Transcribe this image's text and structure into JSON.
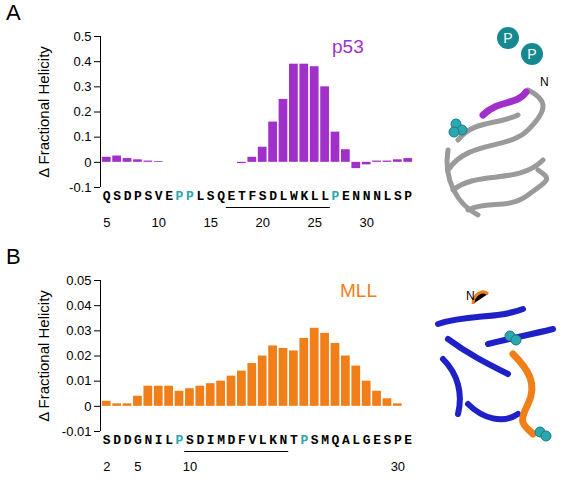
{
  "chart_data": [
    {
      "type": "bar",
      "panel": "A",
      "title": "p53",
      "color": "#a12fc9",
      "ylabel": "Δ Fractional Helicity",
      "x": [
        5,
        6,
        7,
        8,
        9,
        10,
        11,
        12,
        13,
        14,
        15,
        16,
        17,
        18,
        19,
        20,
        21,
        22,
        23,
        24,
        25,
        26,
        27,
        28,
        29,
        30,
        31,
        32,
        33,
        34
      ],
      "categories": [
        "Q",
        "S",
        "D",
        "P",
        "S",
        "V",
        "E",
        "P",
        "P",
        "L",
        "S",
        "Q",
        "E",
        "T",
        "F",
        "S",
        "D",
        "L",
        "W",
        "K",
        "L",
        "L",
        "P",
        "E",
        "N",
        "N",
        "N",
        "L",
        "S",
        "P"
      ],
      "values": [
        0.02,
        0.025,
        0.015,
        0.01,
        0.005,
        0.003,
        0,
        0,
        0,
        0,
        0,
        0,
        0,
        -0.005,
        0.02,
        0.06,
        0.16,
        0.25,
        0.39,
        0.39,
        0.38,
        0.3,
        0.12,
        0.05,
        -0.025,
        -0.01,
        0.005,
        0.005,
        0.01,
        0.015
      ],
      "ylim": [
        -0.1,
        0.5
      ],
      "yticks": [
        -0.1,
        0,
        0.1,
        0.2,
        0.3,
        0.4,
        0.5
      ],
      "xticks": [
        5,
        10,
        15,
        20,
        25,
        30
      ],
      "highlight": [
        12,
        13,
        27
      ],
      "underline": [
        17,
        26
      ],
      "phospho_labels": [
        "P",
        "P"
      ],
      "terminus_label": "N"
    },
    {
      "type": "bar",
      "panel": "B",
      "title": "MLL",
      "color": "#f07f1a",
      "ylabel": "Δ Fractional Helicity",
      "x": [
        2,
        3,
        4,
        5,
        6,
        7,
        8,
        9,
        10,
        11,
        12,
        13,
        14,
        15,
        16,
        17,
        18,
        19,
        20,
        21,
        22,
        23,
        24,
        25,
        26,
        27,
        28,
        29,
        30,
        31
      ],
      "categories": [
        "S",
        "D",
        "D",
        "G",
        "N",
        "I",
        "L",
        "P",
        "S",
        "D",
        "I",
        "M",
        "D",
        "F",
        "V",
        "L",
        "K",
        "N",
        "T",
        "P",
        "S",
        "M",
        "Q",
        "A",
        "L",
        "G",
        "E",
        "S",
        "P",
        "E"
      ],
      "values": [
        0.002,
        0.001,
        0.001,
        0.004,
        0.008,
        0.008,
        0.008,
        0.006,
        0.007,
        0.008,
        0.009,
        0.01,
        0.012,
        0.014,
        0.017,
        0.02,
        0.024,
        0.023,
        0.022,
        0.027,
        0.031,
        0.029,
        0.025,
        0.02,
        0.016,
        0.01,
        0.006,
        0.003,
        0.001,
        0
      ],
      "ylim": [
        -0.01,
        0.05
      ],
      "yticks": [
        -0.01,
        0,
        0.01,
        0.02,
        0.03,
        0.04,
        0.05
      ],
      "xticks": [
        2,
        5,
        10,
        30
      ],
      "highlight": [
        9,
        21
      ],
      "underline": [
        10,
        19
      ],
      "phospho_labels": [],
      "terminus_label": "N"
    }
  ]
}
